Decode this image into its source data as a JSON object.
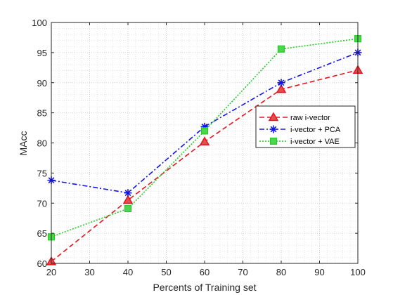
{
  "chart_data": {
    "type": "line",
    "title": "",
    "xlabel": "Percents of Training set",
    "ylabel": "MAcc",
    "x": [
      20,
      40,
      60,
      80,
      100
    ],
    "xlim": [
      20,
      100
    ],
    "ylim": [
      60,
      100
    ],
    "xticks": [
      "20",
      "30",
      "40",
      "50",
      "60",
      "70",
      "80",
      "90",
      "100"
    ],
    "yticks": [
      "60",
      "65",
      "70",
      "75",
      "80",
      "85",
      "90",
      "95",
      "100"
    ],
    "grid": "on (major and minor, dotted)",
    "legend_position": "east",
    "series": [
      {
        "name": "raw i-vector",
        "values": [
          60.3,
          70.5,
          80.2,
          88.9,
          92.1
        ],
        "color": "#e8141c",
        "marker": "triangle",
        "line": "dashed"
      },
      {
        "name": "i-vector + PCA",
        "values": [
          73.8,
          71.7,
          82.7,
          90.0,
          95.0
        ],
        "color": "#1414e6",
        "marker": "asterisk",
        "line": "dash-dot"
      },
      {
        "name": "i-vector + VAE",
        "values": [
          64.4,
          69.1,
          82.0,
          95.6,
          97.3
        ],
        "color": "#22cc22",
        "marker": "square",
        "line": "dotted"
      }
    ]
  }
}
